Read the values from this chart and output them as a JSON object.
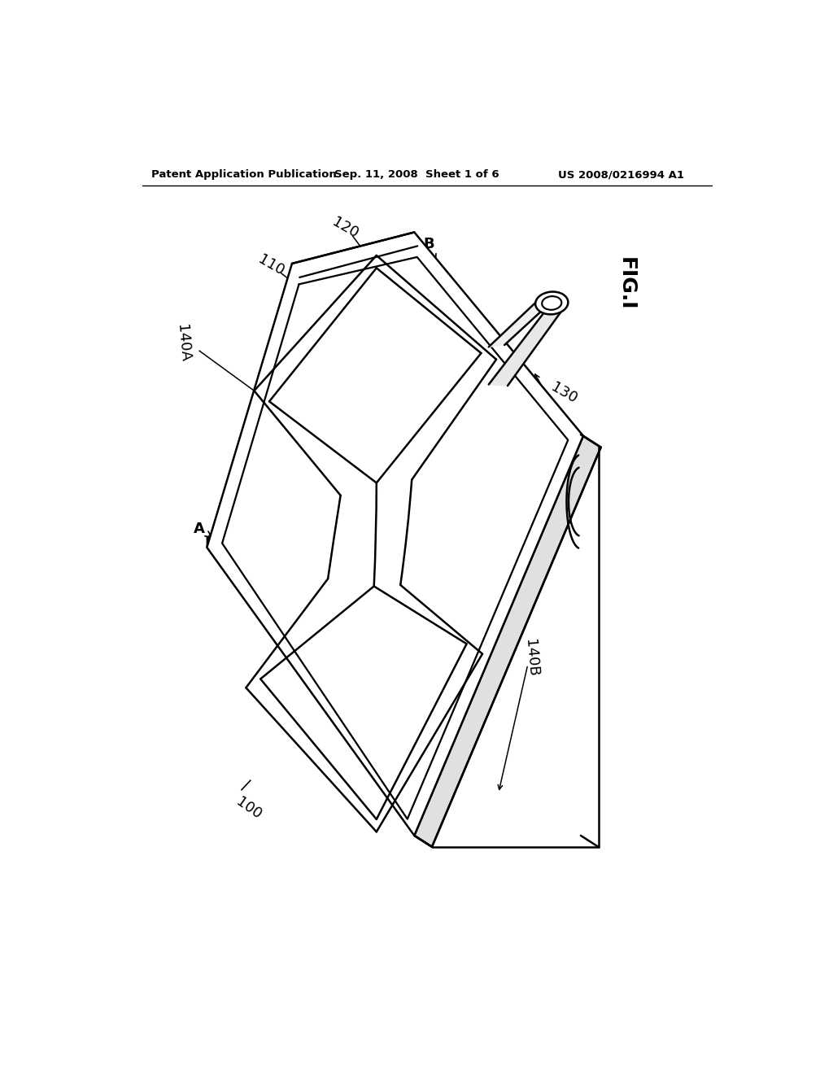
{
  "background_color": "#ffffff",
  "line_color": "#000000",
  "line_width": 1.8,
  "header_text": "Patent Application Publication",
  "header_date": "Sep. 11, 2008  Sheet 1 of 6",
  "header_patent": "US 2008/0216994 A1",
  "fig_label": "FIG.I"
}
